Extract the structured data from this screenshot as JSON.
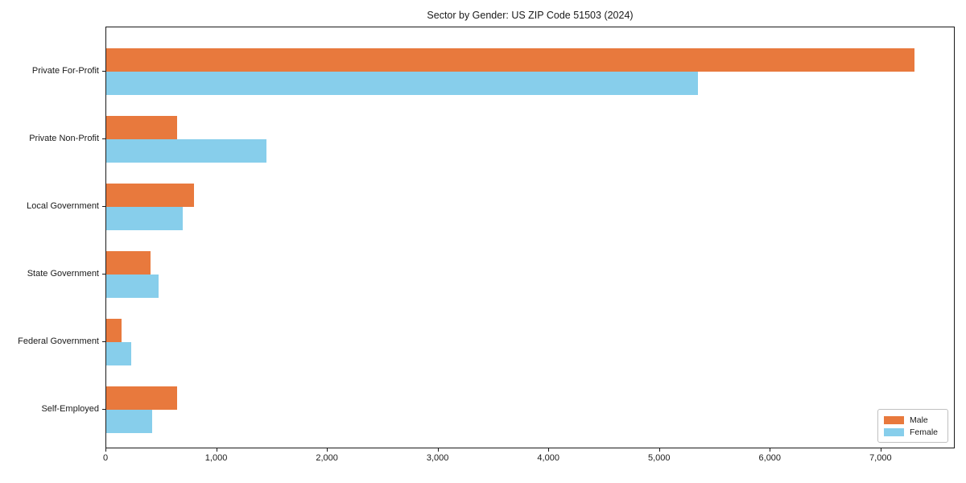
{
  "title": "Sector by Gender: US ZIP Code 51503 (2024)",
  "chart_data": {
    "type": "bar",
    "orientation": "horizontal",
    "title": "Sector by Gender: US ZIP Code 51503 (2024)",
    "categories": [
      "Private For-Profit",
      "Private Non-Profit",
      "Local Government",
      "State Government",
      "Federal Government",
      "Self-Employed"
    ],
    "series": [
      {
        "name": "Male",
        "color": "#E8793D",
        "values": [
          7300,
          640,
          790,
          400,
          140,
          640
        ]
      },
      {
        "name": "Female",
        "color": "#87CEEB",
        "values": [
          5340,
          1450,
          690,
          470,
          225,
          415
        ]
      }
    ],
    "xlabel": "",
    "ylabel": "",
    "xlim": [
      0,
      7670
    ],
    "xticks": [
      0,
      1000,
      2000,
      3000,
      4000,
      5000,
      6000,
      7000
    ],
    "xtick_labels": [
      "0",
      "1,000",
      "2,000",
      "3,000",
      "4,000",
      "5,000",
      "6,000",
      "7,000"
    ],
    "grid": false,
    "legend_position": "lower right",
    "axis_color": "#1a1a1a"
  }
}
